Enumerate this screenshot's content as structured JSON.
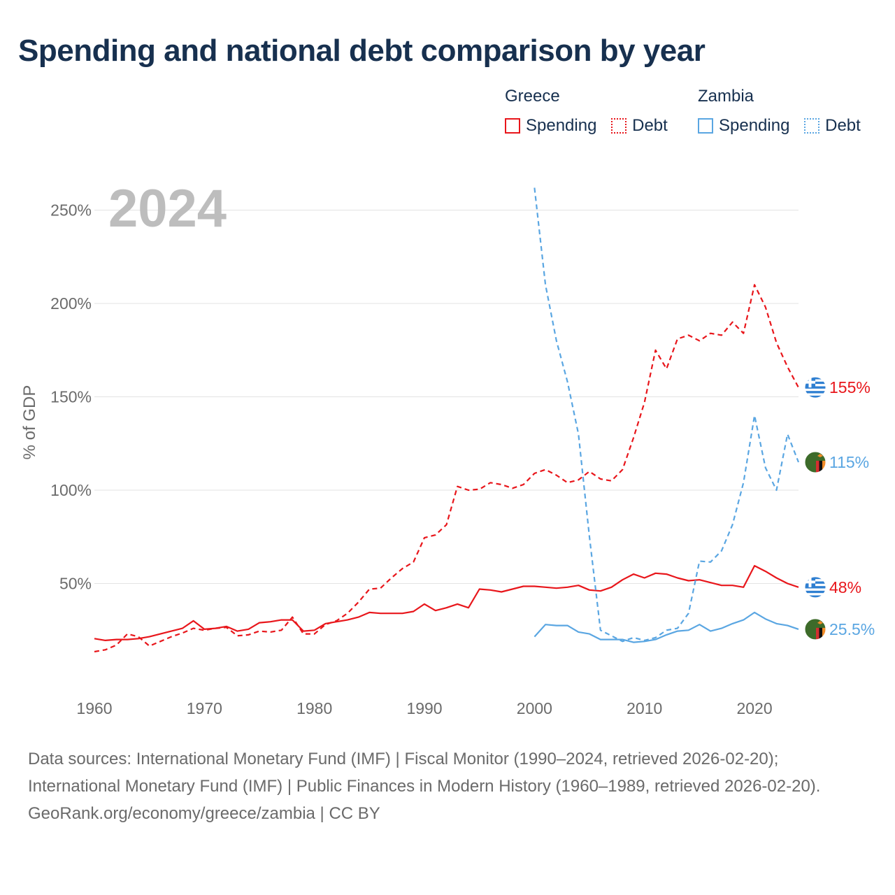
{
  "title": "Spending and national debt comparison by year",
  "legend": {
    "groups": [
      {
        "title": "Greece",
        "spending_label": "Spending",
        "debt_label": "Debt",
        "color": "#e8161b"
      },
      {
        "title": "Zambia",
        "spending_label": "Spending",
        "debt_label": "Debt",
        "color": "#5aa6e2"
      }
    ]
  },
  "footer": {
    "sources": "Data sources: International Monetary Fund (IMF) | Fiscal Monitor (1990–2024, retrieved 2026-02-20); International Monetary Fund (IMF) | Public Finances in Modern History (1960–1989, retrieved 2026-02-20).",
    "credit": "GeoRank.org/economy/greece/zambia | CC BY"
  },
  "chart_data": {
    "type": "line",
    "year_label": "2024",
    "ylabel": "% of GDP",
    "xlabel": "",
    "xlim": [
      1960,
      2024
    ],
    "ylim": [
      0,
      260
    ],
    "x_ticks": [
      1960,
      1970,
      1980,
      1990,
      2000,
      2010,
      2020
    ],
    "y_ticks": [
      50,
      100,
      150,
      200,
      250
    ],
    "y_tick_labels": [
      "50%",
      "100%",
      "150%",
      "200%",
      "250%"
    ],
    "grid": true,
    "series": [
      {
        "name": "Greece Debt",
        "country": "Greece",
        "metric": "Debt",
        "color": "#e8161b",
        "dashed": true,
        "end_label": "155%",
        "flag": "greece-flag",
        "x": [
          1960,
          1961,
          1962,
          1963,
          1964,
          1965,
          1966,
          1967,
          1968,
          1969,
          1970,
          1971,
          1972,
          1973,
          1974,
          1975,
          1976,
          1977,
          1978,
          1979,
          1980,
          1981,
          1982,
          1983,
          1984,
          1985,
          1986,
          1987,
          1988,
          1989,
          1990,
          1991,
          1992,
          1993,
          1994,
          1995,
          1996,
          1997,
          1998,
          1999,
          2000,
          2001,
          2002,
          2003,
          2004,
          2005,
          2006,
          2007,
          2008,
          2009,
          2010,
          2011,
          2012,
          2013,
          2014,
          2015,
          2016,
          2017,
          2018,
          2019,
          2020,
          2021,
          2022,
          2023,
          2024
        ],
        "values": [
          13.5,
          14.5,
          17,
          23,
          21.5,
          16.5,
          19,
          21.5,
          23.5,
          26,
          25,
          26,
          26.5,
          22,
          22.5,
          24.5,
          24,
          25,
          32,
          23,
          23,
          28,
          30,
          34,
          40,
          47,
          47.5,
          53,
          58,
          61.5,
          74.5,
          76,
          81.5,
          102,
          100,
          100.5,
          104,
          103,
          101,
          103,
          109,
          111,
          108,
          104,
          105.5,
          110,
          106,
          105,
          111,
          128,
          147,
          175,
          165,
          181,
          183,
          180,
          184,
          183,
          190,
          184,
          210,
          198,
          179,
          166,
          155
        ]
      },
      {
        "name": "Greece Spending",
        "country": "Greece",
        "metric": "Spending",
        "color": "#e8161b",
        "dashed": false,
        "end_label": "48%",
        "flag": "greece-flag",
        "x": [
          1960,
          1961,
          1962,
          1963,
          1964,
          1965,
          1966,
          1967,
          1968,
          1969,
          1970,
          1971,
          1972,
          1973,
          1974,
          1975,
          1976,
          1977,
          1978,
          1979,
          1980,
          1981,
          1982,
          1983,
          1984,
          1985,
          1986,
          1987,
          1988,
          1989,
          1990,
          1991,
          1992,
          1993,
          1994,
          1995,
          1996,
          1997,
          1998,
          1999,
          2000,
          2001,
          2002,
          2003,
          2004,
          2005,
          2006,
          2007,
          2008,
          2009,
          2010,
          2011,
          2012,
          2013,
          2014,
          2015,
          2016,
          2017,
          2018,
          2019,
          2020,
          2021,
          2022,
          2023,
          2024
        ],
        "values": [
          20.5,
          19.5,
          20,
          20,
          20.5,
          21.5,
          23,
          24.5,
          26,
          30,
          25.5,
          26,
          27,
          24.5,
          25.5,
          29,
          29.5,
          30.5,
          30.5,
          24.5,
          25,
          28.5,
          29.5,
          30.5,
          32,
          34.5,
          34,
          34,
          34,
          35,
          39,
          35.5,
          37,
          39,
          37,
          47,
          46.5,
          45.5,
          47,
          48.5,
          48.5,
          48,
          47.5,
          48,
          49,
          46.5,
          46,
          48,
          52,
          55,
          53,
          55.5,
          55,
          53,
          51.5,
          52,
          50.5,
          49,
          49,
          48,
          59.5,
          56.5,
          53,
          50,
          48
        ]
      },
      {
        "name": "Zambia Debt",
        "country": "Zambia",
        "metric": "Debt",
        "color": "#5aa6e2",
        "dashed": true,
        "end_label": "115%",
        "flag": "zambia-flag",
        "x": [
          2000,
          2001,
          2002,
          2003,
          2004,
          2005,
          2006,
          2007,
          2008,
          2009,
          2010,
          2011,
          2012,
          2013,
          2014,
          2015,
          2016,
          2017,
          2018,
          2019,
          2020,
          2021,
          2022,
          2023,
          2024
        ],
        "values": [
          262,
          210,
          180,
          158,
          130,
          75,
          25,
          22,
          19,
          21,
          19.5,
          21,
          25,
          26,
          34,
          62,
          61.5,
          67.5,
          81.5,
          104,
          140,
          112,
          100,
          130,
          115
        ]
      },
      {
        "name": "Zambia Spending",
        "country": "Zambia",
        "metric": "Spending",
        "color": "#5aa6e2",
        "dashed": false,
        "end_label": "25.5%",
        "flag": "zambia-flag",
        "x": [
          2000,
          2001,
          2002,
          2003,
          2004,
          2005,
          2006,
          2007,
          2008,
          2009,
          2010,
          2011,
          2012,
          2013,
          2014,
          2015,
          2016,
          2017,
          2018,
          2019,
          2020,
          2021,
          2022,
          2023,
          2024
        ],
        "values": [
          21.5,
          28,
          27.5,
          27.5,
          24,
          23,
          20,
          20,
          20,
          18.5,
          19,
          20,
          22.5,
          24.5,
          25,
          28,
          24.5,
          26,
          28.5,
          30.5,
          34.5,
          31,
          28.5,
          27.5,
          25.5
        ]
      }
    ]
  }
}
